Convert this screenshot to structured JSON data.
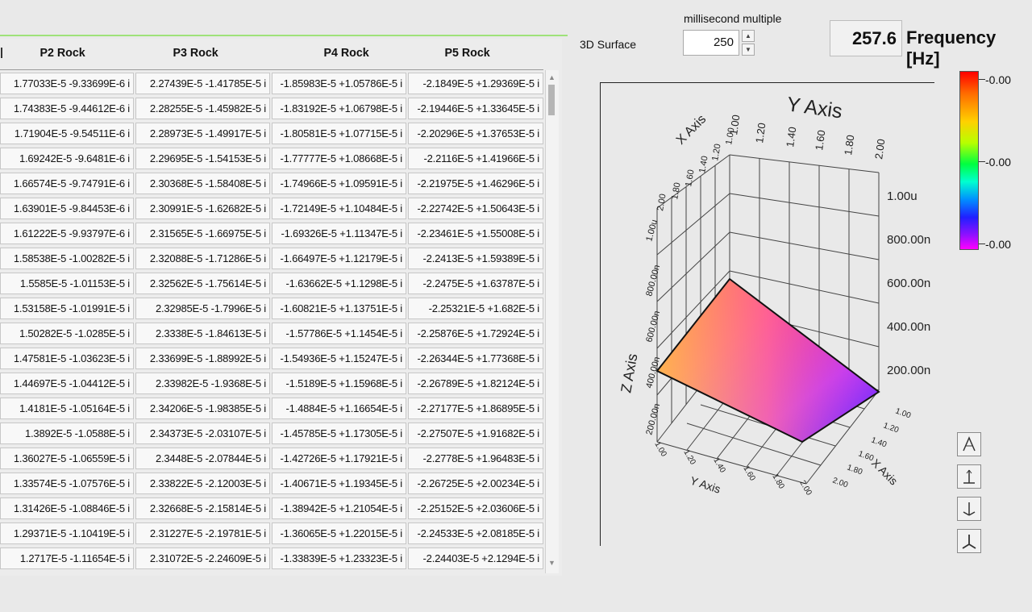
{
  "table": {
    "columns": [
      "P2 Rock",
      "P3 Rock",
      "P4 Rock",
      "P5 Rock"
    ],
    "rows": [
      [
        "1.77033E-5 -9.33699E-6 i",
        "2.27439E-5 -1.41785E-5 i",
        "-1.85983E-5 +1.05786E-5 i",
        "-2.1849E-5 +1.29369E-5 i"
      ],
      [
        "1.74383E-5 -9.44612E-6 i",
        "2.28255E-5 -1.45982E-5 i",
        "-1.83192E-5 +1.06798E-5 i",
        "-2.19446E-5 +1.33645E-5 i"
      ],
      [
        "1.71904E-5 -9.54511E-6 i",
        "2.28973E-5 -1.49917E-5 i",
        "-1.80581E-5 +1.07715E-5 i",
        "-2.20296E-5 +1.37653E-5 i"
      ],
      [
        "1.69242E-5 -9.6481E-6 i",
        "2.29695E-5 -1.54153E-5 i",
        "-1.77777E-5 +1.08668E-5 i",
        "-2.2116E-5 +1.41966E-5 i"
      ],
      [
        "1.66574E-5 -9.74791E-6 i",
        "2.30368E-5 -1.58408E-5 i",
        "-1.74966E-5 +1.09591E-5 i",
        "-2.21975E-5 +1.46296E-5 i"
      ],
      [
        "1.63901E-5 -9.84453E-6 i",
        "2.30991E-5 -1.62682E-5 i",
        "-1.72149E-5 +1.10484E-5 i",
        "-2.22742E-5 +1.50643E-5 i"
      ],
      [
        "1.61222E-5 -9.93797E-6 i",
        "2.31565E-5 -1.66975E-5 i",
        "-1.69326E-5 +1.11347E-5 i",
        "-2.23461E-5 +1.55008E-5 i"
      ],
      [
        "1.58538E-5 -1.00282E-5 i",
        "2.32088E-5 -1.71286E-5 i",
        "-1.66497E-5 +1.12179E-5 i",
        "-2.2413E-5 +1.59389E-5 i"
      ],
      [
        "1.5585E-5 -1.01153E-5 i",
        "2.32562E-5 -1.75614E-5 i",
        "-1.63662E-5 +1.1298E-5 i",
        "-2.2475E-5 +1.63787E-5 i"
      ],
      [
        "1.53158E-5 -1.01991E-5 i",
        "2.32985E-5 -1.7996E-5 i",
        "-1.60821E-5 +1.13751E-5 i",
        "-2.25321E-5 +1.682E-5 i"
      ],
      [
        "1.50282E-5 -1.0285E-5 i",
        "2.3338E-5 -1.84613E-5 i",
        "-1.57786E-5 +1.1454E-5 i",
        "-2.25876E-5 +1.72924E-5 i"
      ],
      [
        "1.47581E-5 -1.03623E-5 i",
        "2.33699E-5 -1.88992E-5 i",
        "-1.54936E-5 +1.15247E-5 i",
        "-2.26344E-5 +1.77368E-5 i"
      ],
      [
        "1.44697E-5 -1.04412E-5 i",
        "2.33982E-5 -1.9368E-5 i",
        "-1.5189E-5 +1.15968E-5 i",
        "-2.26789E-5 +1.82124E-5 i"
      ],
      [
        "1.4181E-5 -1.05164E-5 i",
        "2.34206E-5 -1.98385E-5 i",
        "-1.4884E-5 +1.16654E-5 i",
        "-2.27177E-5 +1.86895E-5 i"
      ],
      [
        "1.3892E-5 -1.0588E-5 i",
        "2.34373E-5 -2.03107E-5 i",
        "-1.45785E-5 +1.17305E-5 i",
        "-2.27507E-5 +1.91682E-5 i"
      ],
      [
        "1.36027E-5 -1.06559E-5 i",
        "2.3448E-5 -2.07844E-5 i",
        "-1.42726E-5 +1.17921E-5 i",
        "-2.2778E-5 +1.96483E-5 i"
      ],
      [
        "1.33574E-5 -1.07576E-5 i",
        "2.33822E-5 -2.12003E-5 i",
        "-1.40671E-5 +1.19345E-5 i",
        "-2.26725E-5 +2.00234E-5 i"
      ],
      [
        "1.31426E-5 -1.08846E-5 i",
        "2.32668E-5 -2.15814E-5 i",
        "-1.38942E-5 +1.21054E-5 i",
        "-2.25152E-5 +2.03606E-5 i"
      ],
      [
        "1.29371E-5 -1.10419E-5 i",
        "2.31227E-5 -2.19781E-5 i",
        "-1.36065E-5 +1.22015E-5 i",
        "-2.24533E-5 +2.08185E-5 i"
      ],
      [
        "1.2717E-5 -1.11654E-5 i",
        "2.31072E-5 -2.24609E-5 i",
        "-1.33839E-5 +1.23323E-5 i",
        "-2.24403E-5 +2.1294E-5 i"
      ]
    ]
  },
  "controls": {
    "plot_label": "3D Surface",
    "ms_label": "millisecond multiple",
    "ms_value": "250",
    "frequency_value": "257.6",
    "frequency_label": "Frequency [Hz]"
  },
  "plot": {
    "y_axis_title": "Y Axis",
    "x_axis_title": "X Axis",
    "z_axis_title": "Z Axis",
    "y_top_ticks": [
      "1.00",
      "1.20",
      "1.40",
      "1.60",
      "1.80",
      "2.00"
    ],
    "x_left_ticks": [
      "2.00",
      "1.80",
      "1.60",
      "1.40",
      "1.20",
      "1.00"
    ],
    "z_left_ticks": [
      "1.00u",
      "800.00n",
      "600.00n",
      "400.00n",
      "200.00n"
    ],
    "z_right_ticks": [
      "1.00u",
      "800.00n",
      "600.00n",
      "400.00n",
      "200.00n"
    ],
    "x_bottom_ticks": [
      "1.00",
      "1.20",
      "1.40",
      "1.60",
      "1.80",
      "2.00"
    ],
    "y_bottom_ticks": [
      "1.00",
      "1.20",
      "1.40",
      "1.60",
      "1.80",
      "2.00"
    ],
    "scale_labels": [
      "-0.00",
      "-0.00",
      "-0.00"
    ]
  }
}
